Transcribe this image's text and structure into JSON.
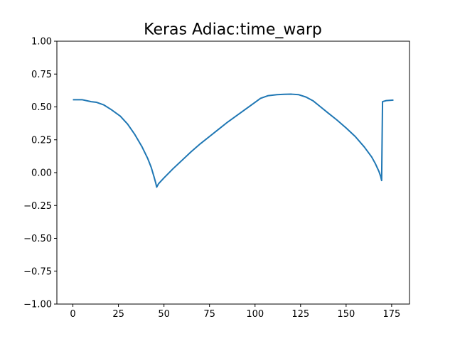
{
  "chart_data": {
    "type": "line",
    "title": "Keras Adiac:time_warp",
    "xlabel": "",
    "ylabel": "",
    "xlim": [
      -8.8,
      184.8
    ],
    "ylim": [
      -1.0,
      1.0
    ],
    "xticks": [
      0,
      25,
      50,
      75,
      100,
      125,
      150,
      175
    ],
    "yticks": [
      -1.0,
      -0.75,
      -0.5,
      -0.25,
      0.0,
      0.25,
      0.5,
      0.75,
      1.0
    ],
    "xtick_labels": [
      "0",
      "25",
      "50",
      "75",
      "100",
      "125",
      "150",
      "175"
    ],
    "ytick_labels": [
      "−1.00",
      "−0.75",
      "−0.50",
      "−0.25",
      "0.00",
      "0.25",
      "0.50",
      "0.75",
      "1.00"
    ],
    "grid": false,
    "series": [
      {
        "color": "#1f77b4",
        "x": [
          0,
          5,
          10,
          13,
          17,
          21,
          26,
          30,
          34,
          38,
          41,
          43,
          44.5,
          45.5,
          46,
          47,
          50,
          55,
          60,
          65,
          70,
          75,
          80,
          85,
          90,
          95,
          100,
          103,
          107,
          112,
          116,
          120,
          124,
          128,
          132,
          136,
          140,
          145,
          150,
          155,
          160,
          164,
          166,
          168,
          169,
          169.5,
          170,
          172,
          176
        ],
        "y": [
          0.555,
          0.555,
          0.54,
          0.535,
          0.515,
          0.48,
          0.43,
          0.37,
          0.29,
          0.195,
          0.11,
          0.04,
          -0.03,
          -0.08,
          -0.11,
          -0.085,
          -0.04,
          0.03,
          0.095,
          0.16,
          0.22,
          0.275,
          0.33,
          0.385,
          0.435,
          0.485,
          0.535,
          0.565,
          0.585,
          0.593,
          0.596,
          0.597,
          0.593,
          0.575,
          0.545,
          0.5,
          0.455,
          0.4,
          0.34,
          0.275,
          0.195,
          0.12,
          0.07,
          0.01,
          -0.03,
          -0.06,
          0.54,
          0.548,
          0.552
        ]
      }
    ]
  }
}
